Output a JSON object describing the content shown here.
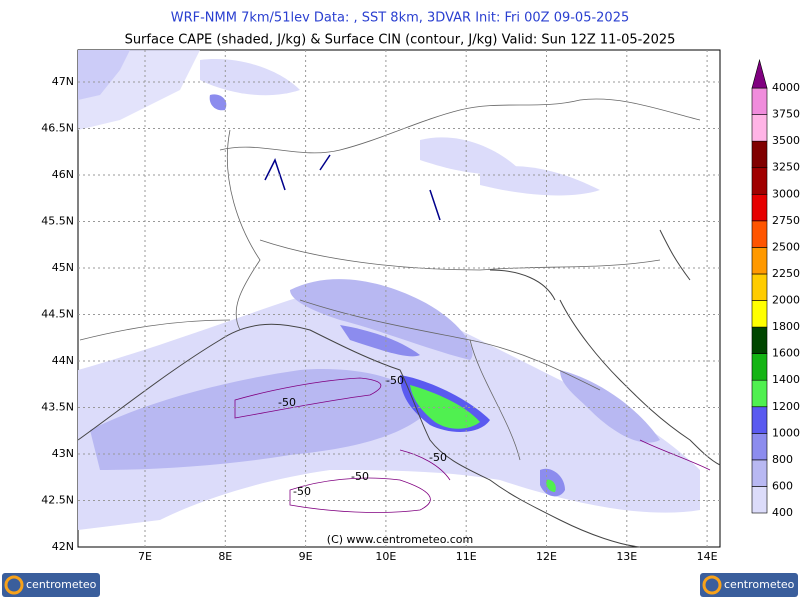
{
  "header": {
    "line1": "WRF-NMM 7km/51lev   Data: , SST 8km, 3DVAR   Init: Fri 00Z 09-05-2025",
    "line2": "Surface CAPE (shaded, J/kg) & Surface CIN (contour, J/kg)   Valid: Sun 12Z 11-05-2025"
  },
  "map": {
    "lat_labels": [
      "47N",
      "46.5N",
      "46N",
      "45.5N",
      "45N",
      "44.5N",
      "44N",
      "43.5N",
      "43N",
      "42.5N",
      "42N"
    ],
    "lon_labels": [
      "7E",
      "8E",
      "9E",
      "10E",
      "11E",
      "12E",
      "13E",
      "14E"
    ],
    "contour_labels": [
      "-50",
      "-50",
      "-50",
      "-50",
      "-50"
    ],
    "copyright": "(C) www.centrometeo.com"
  },
  "colorbar": {
    "labels": [
      "400",
      "600",
      "800",
      "1000",
      "1200",
      "1400",
      "1600",
      "1800",
      "2000",
      "2250",
      "2500",
      "2750",
      "3000",
      "3250",
      "3500",
      "3750",
      "4000"
    ],
    "colors": [
      "#dcdcfa",
      "#b8b8f2",
      "#8c8cee",
      "#5a5af0",
      "#50f050",
      "#14b414",
      "#004600",
      "#ffff00",
      "#ffcc00",
      "#ff9900",
      "#ff5500",
      "#e60000",
      "#a00000",
      "#800000",
      "#ffb4e6",
      "#f08cdc",
      "#dc64d2",
      "#800080"
    ]
  },
  "logos": [
    "centrometeo",
    "centrometeo"
  ]
}
